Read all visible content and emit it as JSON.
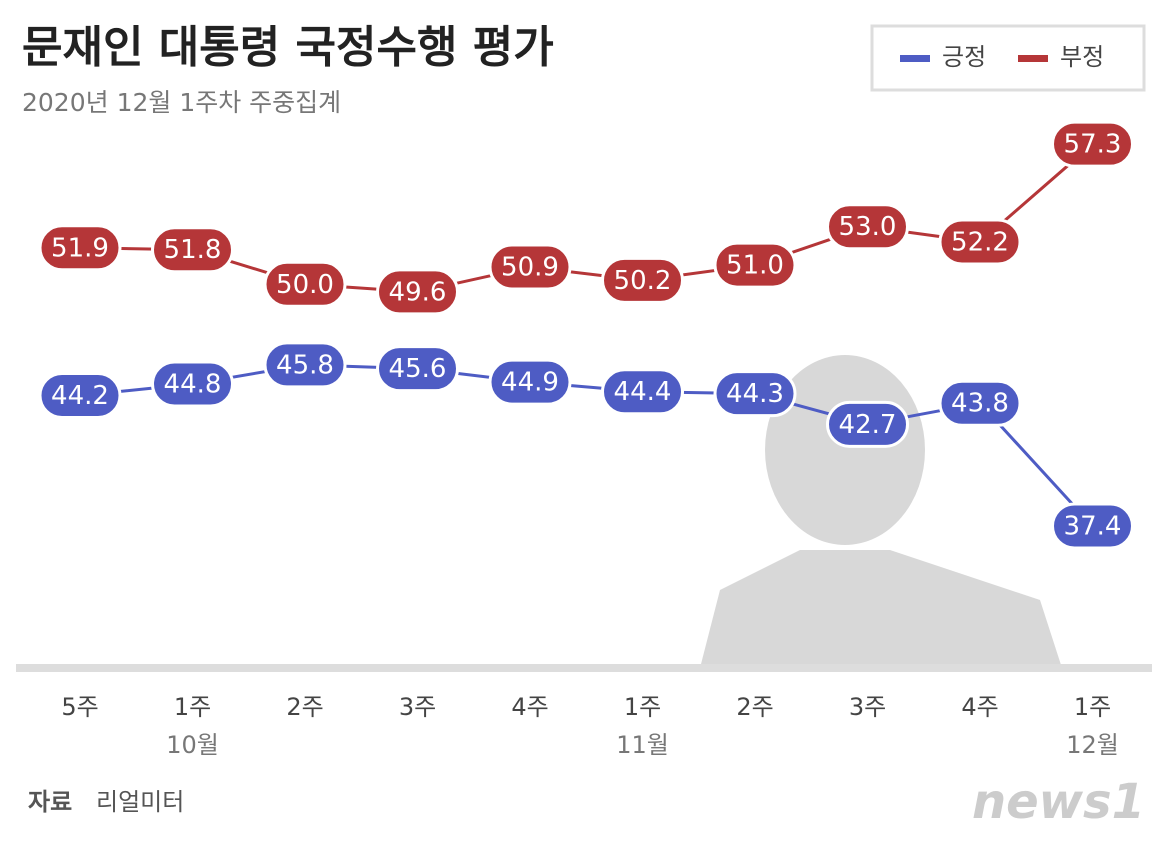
{
  "chart_data": {
    "type": "line",
    "title": "문재인 대통령 국정수행 평가",
    "subtitle": "2020년 12월 1주차 주중집계",
    "categories": [
      "5주",
      "1주",
      "2주",
      "3주",
      "4주",
      "1주",
      "2주",
      "3주",
      "4주",
      "1주"
    ],
    "months": [
      null,
      "10월",
      null,
      null,
      null,
      "11월",
      null,
      null,
      null,
      "12월"
    ],
    "series": [
      {
        "name": "긍정",
        "color": "#4e5cc4",
        "values": [
          44.2,
          44.8,
          45.8,
          45.6,
          44.9,
          44.4,
          44.3,
          42.7,
          43.8,
          37.4
        ],
        "value_labels": [
          "44.2",
          "44.8",
          "45.8",
          "45.6",
          "44.9",
          "44.4",
          "44.3",
          "42.7",
          "43.8",
          "37.4"
        ]
      },
      {
        "name": "부정",
        "color": "#b53638",
        "values": [
          51.9,
          51.8,
          50.0,
          49.6,
          50.9,
          50.2,
          51.0,
          53.0,
          52.2,
          57.3
        ],
        "value_labels": [
          "51.9",
          "51.8",
          "50.0",
          "49.6",
          "50.9",
          "50.2",
          "51.0",
          "53.0",
          "52.2",
          "57.3"
        ]
      }
    ],
    "ylim": [
      30,
      62
    ],
    "legend": "top-right",
    "source_label": "자료",
    "source": "리얼미터",
    "logo": "news1"
  }
}
